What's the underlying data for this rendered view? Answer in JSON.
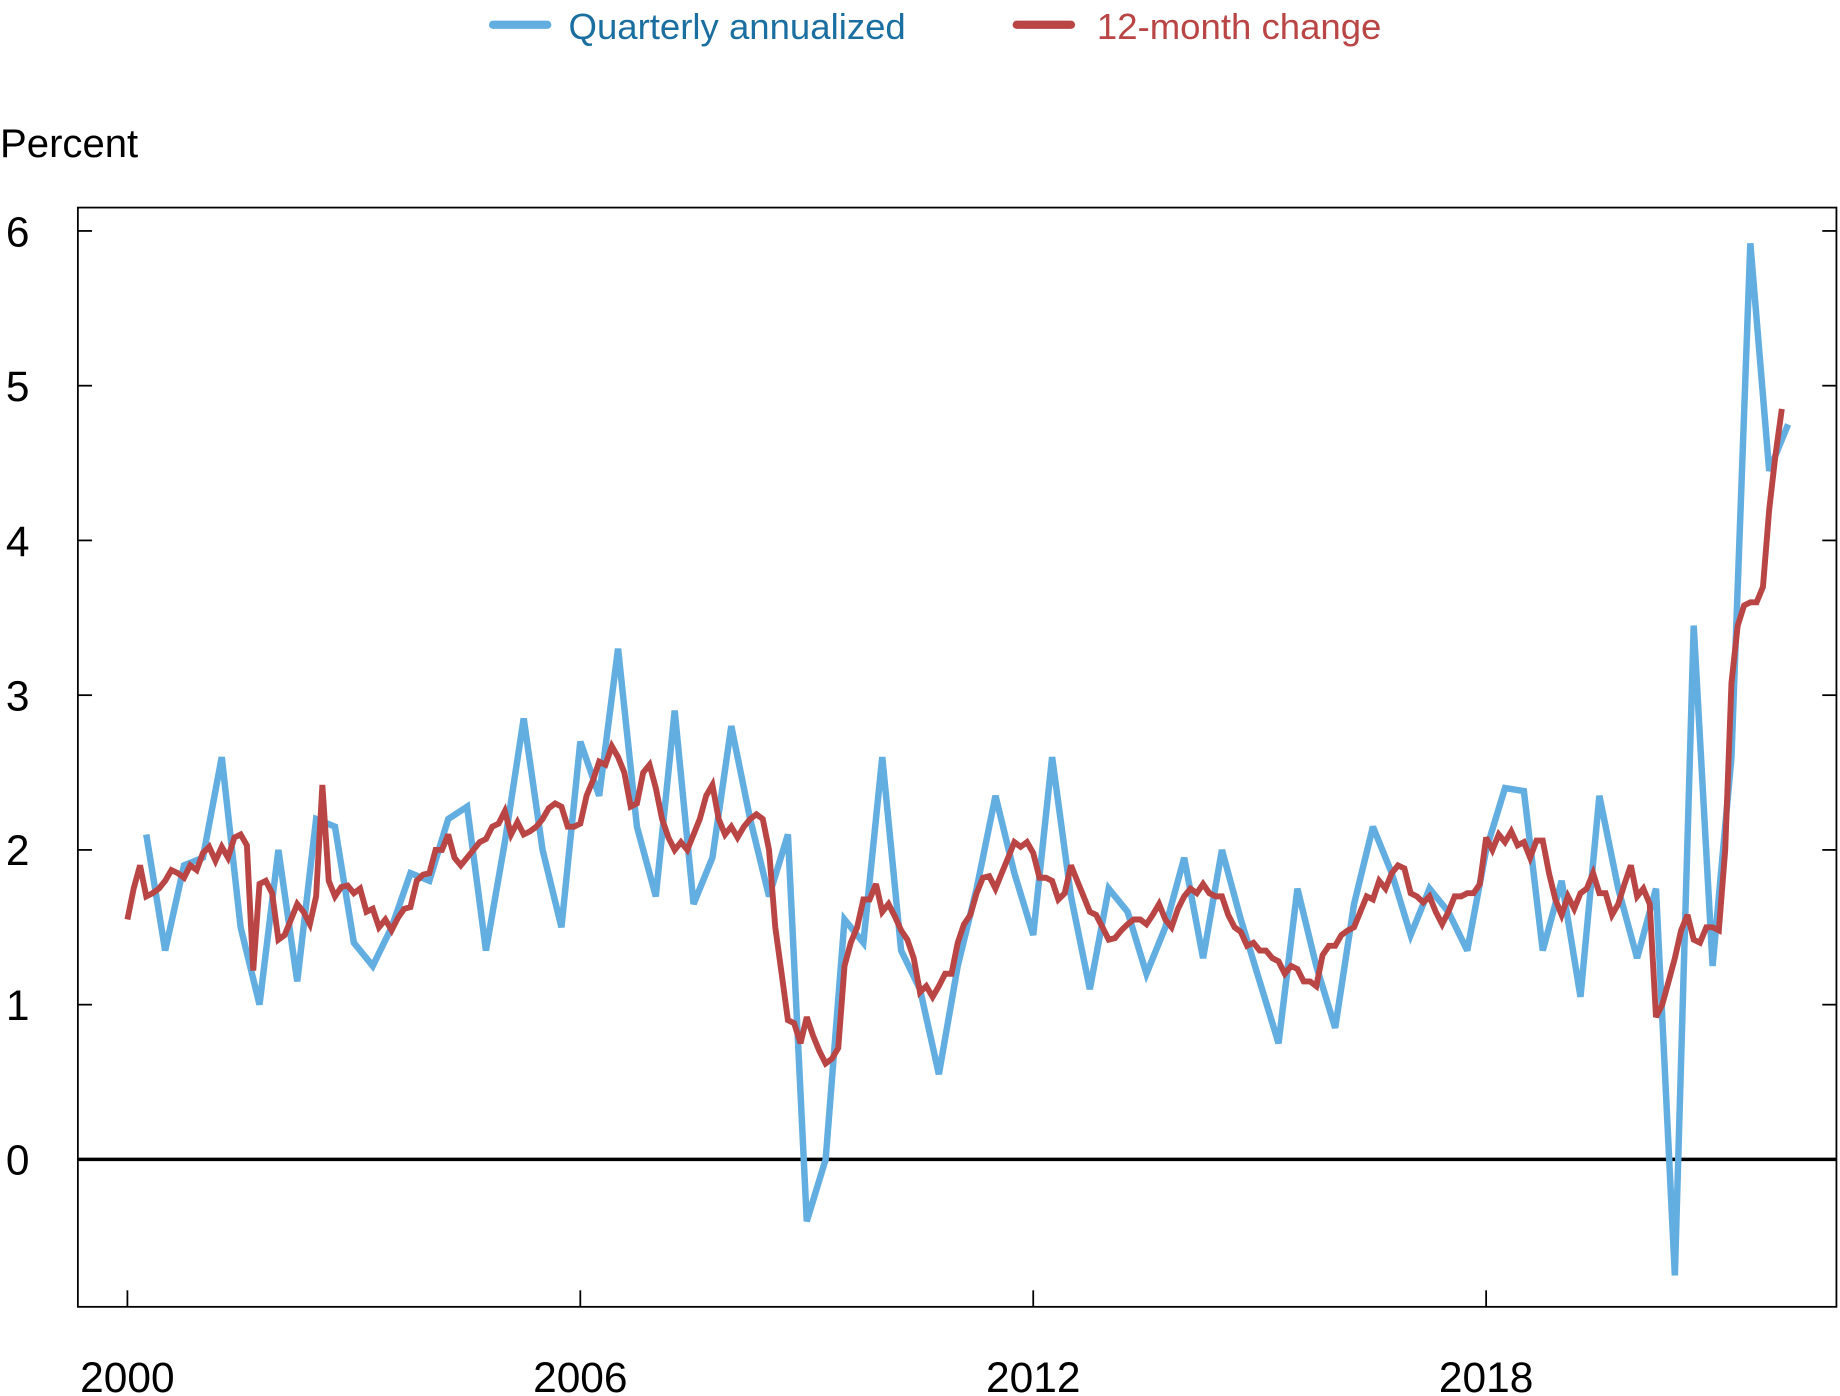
{
  "chart_data": {
    "type": "line",
    "title": "",
    "ylabel": "Percent",
    "xlabel": "",
    "ylim": [
      -1,
      6.3
    ],
    "xlim": [
      1999.65,
      2022.5
    ],
    "yticks": [
      "0",
      "1",
      "2",
      "3",
      "4",
      "5",
      "6"
    ],
    "xticks": [
      "2000",
      "2006",
      "2012",
      "2018"
    ],
    "grid": false,
    "zero_line": true,
    "legend": {
      "placement": "top-center"
    },
    "series": [
      {
        "name": "Quarterly annualized",
        "color": "#62aee0",
        "label_color": "#1a6fa0",
        "frequency": "quarterly",
        "start": "2000-Q2",
        "values": [
          2.1,
          1.35,
          1.9,
          1.95,
          2.6,
          1.5,
          1.0,
          2.0,
          1.15,
          2.2,
          2.15,
          1.4,
          1.25,
          1.5,
          1.85,
          1.8,
          2.2,
          2.28,
          1.35,
          2.05,
          2.85,
          2.0,
          1.5,
          2.7,
          2.35,
          3.3,
          2.15,
          1.7,
          2.9,
          1.65,
          1.95,
          2.8,
          2.2,
          1.7,
          2.1,
          -0.4,
          0.0,
          1.55,
          1.4,
          2.6,
          1.35,
          1.1,
          0.55,
          1.25,
          1.75,
          2.35,
          1.85,
          1.45,
          2.6,
          1.7,
          1.1,
          1.75,
          1.6,
          1.2,
          1.5,
          1.95,
          1.3,
          2.0,
          1.55,
          1.15,
          0.75,
          1.75,
          1.25,
          0.85,
          1.65,
          2.15,
          1.85,
          1.45,
          1.75,
          1.6,
          1.35,
          2.0,
          2.4,
          2.38,
          1.35,
          1.8,
          1.05,
          2.35,
          1.75,
          1.3,
          1.75,
          -0.75,
          3.45,
          1.25,
          2.6,
          5.92,
          4.45,
          4.75
        ]
      },
      {
        "name": "12-month change",
        "color": "#b94545",
        "label_color": "#b94545",
        "frequency": "monthly",
        "start": "2000-01",
        "values": [
          1.55,
          1.75,
          1.9,
          1.7,
          1.72,
          1.75,
          1.8,
          1.87,
          1.85,
          1.82,
          1.9,
          1.87,
          1.98,
          2.02,
          1.93,
          2.02,
          1.95,
          2.08,
          2.1,
          2.03,
          1.22,
          1.78,
          1.8,
          1.72,
          1.42,
          1.45,
          1.55,
          1.65,
          1.6,
          1.52,
          1.7,
          2.42,
          1.8,
          1.7,
          1.76,
          1.77,
          1.72,
          1.75,
          1.6,
          1.62,
          1.5,
          1.55,
          1.48,
          1.56,
          1.62,
          1.63,
          1.8,
          1.84,
          1.85,
          2.0,
          2.0,
          2.1,
          1.95,
          1.9,
          1.95,
          2.0,
          2.05,
          2.07,
          2.15,
          2.17,
          2.25,
          2.1,
          2.18,
          2.1,
          2.12,
          2.15,
          2.2,
          2.27,
          2.3,
          2.28,
          2.15,
          2.15,
          2.17,
          2.35,
          2.45,
          2.57,
          2.55,
          2.67,
          2.6,
          2.5,
          2.28,
          2.3,
          2.5,
          2.55,
          2.4,
          2.2,
          2.08,
          2.0,
          2.05,
          2.0,
          2.1,
          2.2,
          2.35,
          2.42,
          2.2,
          2.1,
          2.15,
          2.08,
          2.15,
          2.2,
          2.23,
          2.2,
          2.0,
          1.5,
          1.2,
          0.9,
          0.88,
          0.75,
          0.92,
          0.8,
          0.7,
          0.62,
          0.65,
          0.72,
          1.25,
          1.4,
          1.5,
          1.68,
          1.68,
          1.78,
          1.6,
          1.65,
          1.57,
          1.48,
          1.42,
          1.3,
          1.08,
          1.12,
          1.05,
          1.12,
          1.2,
          1.2,
          1.4,
          1.52,
          1.58,
          1.72,
          1.82,
          1.83,
          1.75,
          1.85,
          1.95,
          2.05,
          2.02,
          2.05,
          1.98,
          1.82,
          1.82,
          1.8,
          1.68,
          1.72,
          1.9,
          1.8,
          1.7,
          1.6,
          1.58,
          1.5,
          1.42,
          1.43,
          1.48,
          1.52,
          1.55,
          1.55,
          1.52,
          1.58,
          1.65,
          1.55,
          1.5,
          1.62,
          1.7,
          1.75,
          1.72,
          1.78,
          1.72,
          1.7,
          1.7,
          1.58,
          1.5,
          1.47,
          1.38,
          1.4,
          1.35,
          1.35,
          1.3,
          1.28,
          1.2,
          1.25,
          1.23,
          1.15,
          1.15,
          1.12,
          1.32,
          1.38,
          1.38,
          1.45,
          1.48,
          1.5,
          1.6,
          1.7,
          1.68,
          1.8,
          1.75,
          1.85,
          1.9,
          1.88,
          1.72,
          1.7,
          1.66,
          1.7,
          1.6,
          1.52,
          1.6,
          1.7,
          1.7,
          1.72,
          1.72,
          1.78,
          2.08,
          2.0,
          2.1,
          2.05,
          2.12,
          2.03,
          2.05,
          1.95,
          2.06,
          2.06,
          1.85,
          1.68,
          1.58,
          1.7,
          1.62,
          1.72,
          1.75,
          1.85,
          1.72,
          1.72,
          1.58,
          1.65,
          1.78,
          1.9,
          1.7,
          1.75,
          1.65,
          0.92,
          1.0,
          1.15,
          1.3,
          1.48,
          1.58,
          1.42,
          1.4,
          1.5,
          1.5,
          1.48,
          2.0,
          3.08,
          3.45,
          3.58,
          3.6,
          3.6,
          3.7,
          4.2,
          4.55,
          4.85
        ]
      }
    ]
  }
}
